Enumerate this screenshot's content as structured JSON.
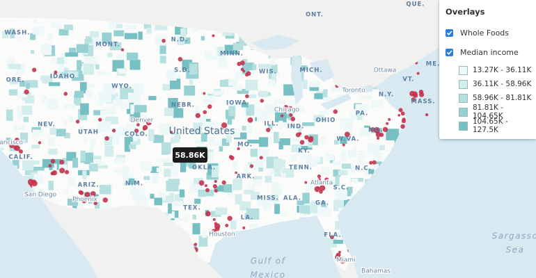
{
  "map": {
    "countries": [
      "United States",
      "ONT.",
      "QUE."
    ],
    "states": [
      "WASH.",
      "MONT.",
      "N.D.",
      "MINN.",
      "ORE.",
      "IDAHO",
      "WYO.",
      "S.D.",
      "WIS.",
      "MICH.",
      "NEBR.",
      "IOWA",
      "NEV.",
      "UTAH",
      "COLO.",
      "ILL.",
      "IND.",
      "OHIO",
      "PA.",
      "N.Y.",
      "VT.",
      "MASS.",
      "ME.",
      "CALIF.",
      "MO.",
      "KY.",
      "W.VA.",
      "MD.",
      "ARIZ.",
      "N.M.",
      "OKLA.",
      "ARK.",
      "TENN.",
      "N.C.",
      "S.C.",
      "MISS.",
      "ALA.",
      "GA.",
      "TEX.",
      "LA.",
      "FLA."
    ],
    "cities": [
      "Ottawa",
      "Toronto",
      "Chicago",
      "Denver",
      "San Francisco",
      "San Diego",
      "Phoenix",
      "Houston",
      "Atlanta",
      "Miami",
      "Bahamas"
    ],
    "water": [
      [
        "Gulf of",
        "Mexico"
      ],
      [
        "Sargasso",
        "Sea"
      ]
    ],
    "tooltip": "58.86K"
  },
  "overlays": {
    "title": "Overlays",
    "layers": [
      {
        "name": "Whole Foods",
        "checked": true
      },
      {
        "name": "Median income",
        "checked": true
      }
    ],
    "legend": [
      {
        "label": "13.27K - 36.11K",
        "color": "#eef8f8"
      },
      {
        "label": "36.11K - 58.96K",
        "color": "#d3ecec"
      },
      {
        "label": "58.96K - 81.81K",
        "color": "#b6dfe0"
      },
      {
        "label": "81.81K - 104.65K",
        "color": "#97d0d2"
      },
      {
        "label": "104.65K - 127.5K",
        "color": "#76c0c3"
      }
    ]
  }
}
